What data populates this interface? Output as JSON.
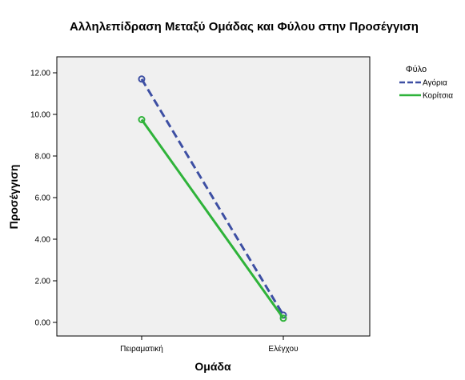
{
  "chart_data": {
    "type": "line",
    "title": "Αλληλεπίδραση Μεταξύ Ομάδας και Φύλου στην Προσέγγιση",
    "xlabel": "Ομάδα",
    "ylabel": "Προσέγγιση",
    "categories": [
      "Πειραματική",
      "Ελέγχου"
    ],
    "ylim": [
      0,
      12.5
    ],
    "yticks": [
      0,
      2,
      4,
      6,
      8,
      10,
      12
    ],
    "ytick_labels": [
      "0.00",
      "2.00",
      "4.00",
      "6.00",
      "8.00",
      "10.00",
      "12.00"
    ],
    "grid": false,
    "plot_background": "#f0f0f0",
    "legend": {
      "title": "Φύλο",
      "position": "top-right, outside plot"
    },
    "series": [
      {
        "name": "Αγόρια",
        "values": [
          11.7,
          0.35
        ],
        "color": "#3d4fa3",
        "dash": "dashed"
      },
      {
        "name": "Κορίτσια",
        "values": [
          9.75,
          0.2
        ],
        "color": "#2fb33a",
        "dash": "solid"
      }
    ]
  }
}
